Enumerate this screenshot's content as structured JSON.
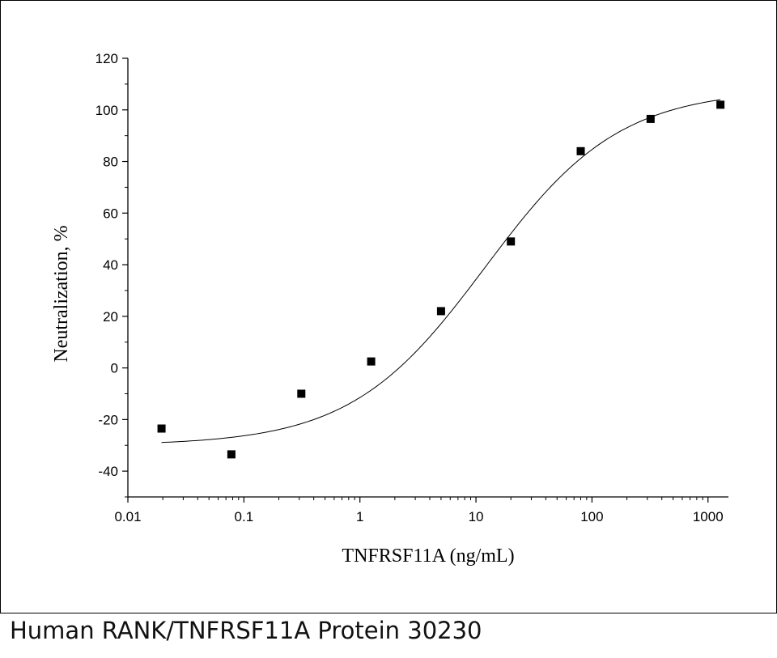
{
  "chart_data": {
    "type": "scatter",
    "title": "",
    "xlabel": "TNFRSF11A (ng/mL)",
    "ylabel": "Neutralization, %",
    "xscale": "log",
    "xlim": [
      0.01,
      1500
    ],
    "ylim": [
      -50,
      120
    ],
    "x_ticks": [
      0.01,
      0.1,
      1,
      10,
      100,
      1000
    ],
    "x_tick_labels": [
      "0.01",
      "0.1",
      "1",
      "10",
      "100",
      "1000"
    ],
    "y_ticks": [
      -40,
      -20,
      0,
      20,
      40,
      60,
      80,
      100,
      120
    ],
    "y_tick_labels": [
      "-40",
      "-20",
      "0",
      "20",
      "40",
      "60",
      "80",
      "100",
      "120"
    ],
    "grid": false,
    "series": [
      {
        "marker": "square",
        "color": "#000000",
        "x": [
          0.0195,
          0.078,
          0.3125,
          1.25,
          5,
          20,
          80,
          320,
          1280
        ],
        "y": [
          -23.5,
          -33.5,
          -10,
          2.5,
          22,
          49,
          84,
          96.5,
          102
        ]
      }
    ],
    "fit_curve": {
      "model": "4PL",
      "color": "#000000",
      "bottom": -30,
      "top": 108,
      "ec50": 12,
      "hill": 0.75,
      "x_range": [
        0.0195,
        1280
      ]
    }
  },
  "caption": "Human RANK/TNFRSF11A Protein 30230"
}
